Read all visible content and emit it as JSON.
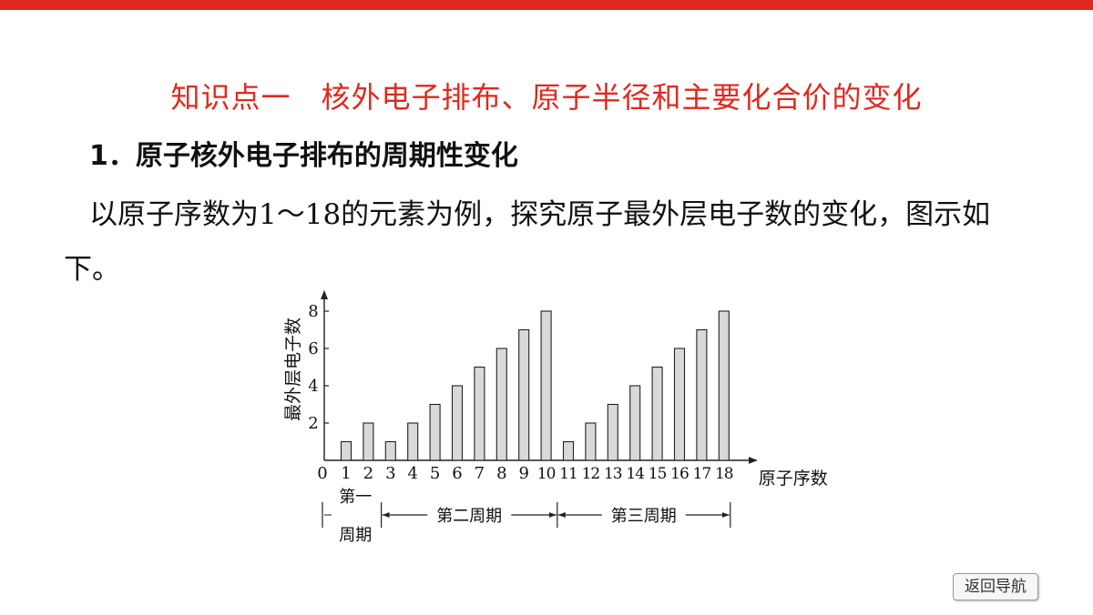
{
  "slide": {
    "heading": "知识点一　核外电子排布、原子半径和主要化合价的变化",
    "subheading": "1．原子核外电子排布的周期性变化",
    "paragraph": "以原子序数为1～18的元素为例，探究原子最外层电子数的变化，图示如下。"
  },
  "nav": {
    "back_label": "返回导航"
  },
  "colors": {
    "accent": "#e0291e",
    "bar_fill": "#d9d9d9"
  },
  "chart_data": {
    "type": "bar",
    "categories": [
      "1",
      "2",
      "3",
      "4",
      "5",
      "6",
      "7",
      "8",
      "9",
      "10",
      "11",
      "12",
      "13",
      "14",
      "15",
      "16",
      "17",
      "18"
    ],
    "values": [
      1,
      2,
      1,
      2,
      3,
      4,
      5,
      6,
      7,
      8,
      1,
      2,
      3,
      4,
      5,
      6,
      7,
      8
    ],
    "ylabel": "最外层电子数",
    "xlabel": "原子序数",
    "origin_label": "0",
    "y_ticks": [
      2,
      4,
      6,
      8
    ],
    "ylim": [
      0,
      8.8
    ],
    "grid": false,
    "periods": [
      {
        "label_line1": "第一",
        "label_line2": "周期",
        "range": [
          1,
          2
        ]
      },
      {
        "label": "第二周期",
        "range": [
          3,
          10
        ]
      },
      {
        "label": "第三周期",
        "range": [
          11,
          18
        ]
      }
    ]
  }
}
